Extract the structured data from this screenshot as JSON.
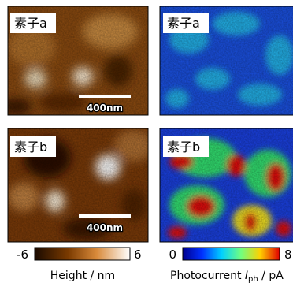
{
  "panels": [
    {
      "label": "素子a",
      "scale_bar": "400nm"
    },
    {
      "label": "素子a"
    },
    {
      "label": "素子b",
      "scale_bar": "400nm"
    },
    {
      "label": "素子b"
    }
  ],
  "colorbars": [
    {
      "min": -6,
      "max": 6,
      "label": "Height / nm"
    },
    {
      "min": 0,
      "max": 8,
      "label_prefix": "Photocurrent ",
      "symbol": "I",
      "subscript": "ph",
      "unit": " / pA"
    }
  ]
}
